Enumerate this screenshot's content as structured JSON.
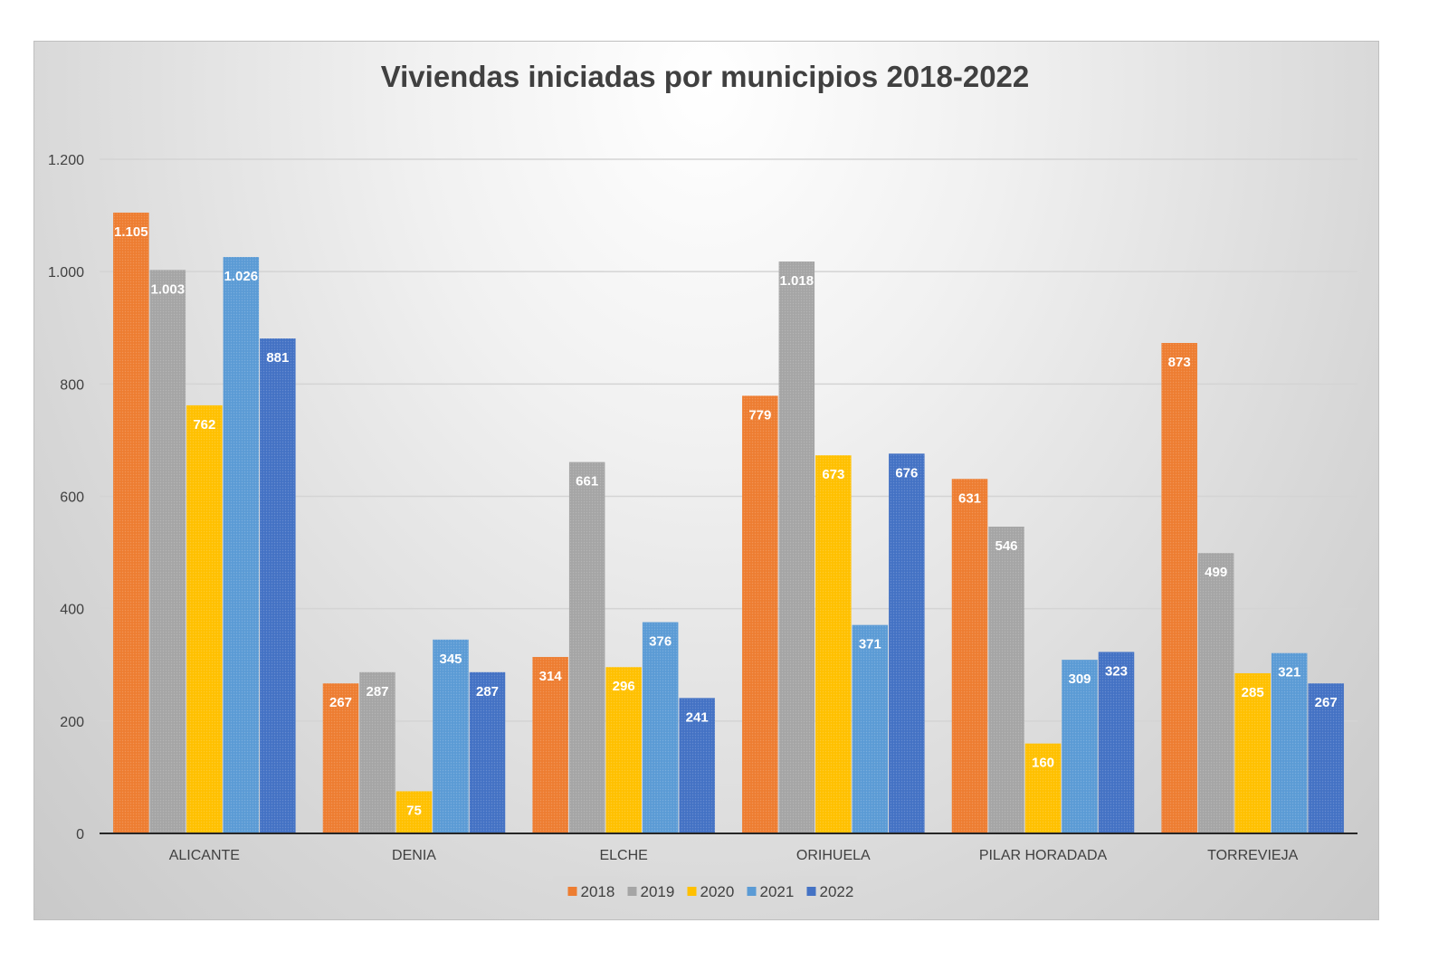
{
  "chart_data": {
    "type": "bar",
    "title": "Viviendas iniciadas por municipios 2018-2022",
    "xlabel": "",
    "ylabel": "",
    "ylim": [
      0,
      1200
    ],
    "yticks": [
      0,
      200,
      400,
      600,
      800,
      1000,
      1200
    ],
    "ytick_labels": [
      "0",
      "200",
      "400",
      "600",
      "800",
      "1.000",
      "1.200"
    ],
    "grid": true,
    "legend_position": "bottom",
    "categories": [
      "ALICANTE",
      "DENIA",
      "ELCHE",
      "ORIHUELA",
      "PILAR HORADADA",
      "TORREVIEJA"
    ],
    "series": [
      {
        "name": "2018",
        "color": "#ED7D31",
        "values": [
          1105,
          267,
          314,
          779,
          631,
          873
        ],
        "labels": [
          "1.105",
          "267",
          "314",
          "779",
          "631",
          "873"
        ]
      },
      {
        "name": "2019",
        "color": "#A5A5A5",
        "values": [
          1003,
          287,
          661,
          1018,
          546,
          499
        ],
        "labels": [
          "1.003",
          "287",
          "661",
          "1.018",
          "546",
          "499"
        ]
      },
      {
        "name": "2020",
        "color": "#FFC000",
        "values": [
          762,
          75,
          296,
          673,
          160,
          285
        ],
        "labels": [
          "762",
          "75",
          "296",
          "673",
          "160",
          "285"
        ]
      },
      {
        "name": "2021",
        "color": "#5B9BD5",
        "values": [
          1026,
          345,
          376,
          371,
          309,
          321
        ],
        "labels": [
          "1.026",
          "345",
          "376",
          "371",
          "309",
          "321"
        ]
      },
      {
        "name": "2022",
        "color": "#4472C4",
        "values": [
          881,
          287,
          241,
          676,
          323,
          267
        ],
        "labels": [
          "881",
          "287",
          "241",
          "676",
          "323",
          "267"
        ]
      }
    ]
  }
}
